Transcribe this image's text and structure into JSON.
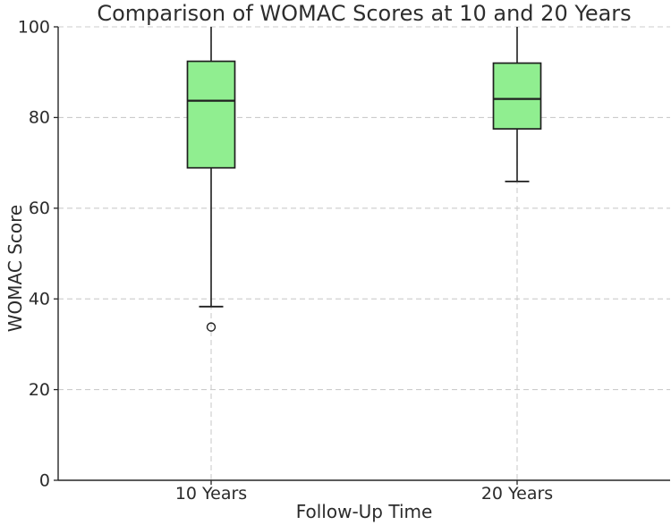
{
  "page": {
    "background_color": "#ffffff"
  },
  "chart_data": {
    "type": "box",
    "title": "Comparison of WOMAC Scores at 10 and 20 Years",
    "xlabel": "Follow-Up Time",
    "ylabel": "WOMAC Score",
    "categories": [
      "10 Years",
      "20 Years"
    ],
    "ylim": [
      0,
      100
    ],
    "yticks": [
      0,
      20,
      40,
      60,
      80,
      100
    ],
    "grid": {
      "visible": true,
      "axes": "both",
      "line_style": "dashed",
      "color": "#cccccc"
    },
    "legend": "none",
    "colors": {
      "box_fill": "#90EE90",
      "box_edge": "#1f1f1f",
      "median_line": "#1f1f1f",
      "whisker": "#1f1f1f",
      "spine": "#262626",
      "text": "#2b2b2b"
    },
    "boxes": [
      {
        "category": "10 Years",
        "whisker_low": 38.3,
        "q1": 68.9,
        "median": 83.7,
        "q3": 92.4,
        "whisker_high": 100,
        "outliers": [
          33.8
        ]
      },
      {
        "category": "20 Years",
        "whisker_low": 65.9,
        "q1": 77.5,
        "median": 84.1,
        "q3": 92.0,
        "whisker_high": 100,
        "outliers": []
      }
    ]
  }
}
